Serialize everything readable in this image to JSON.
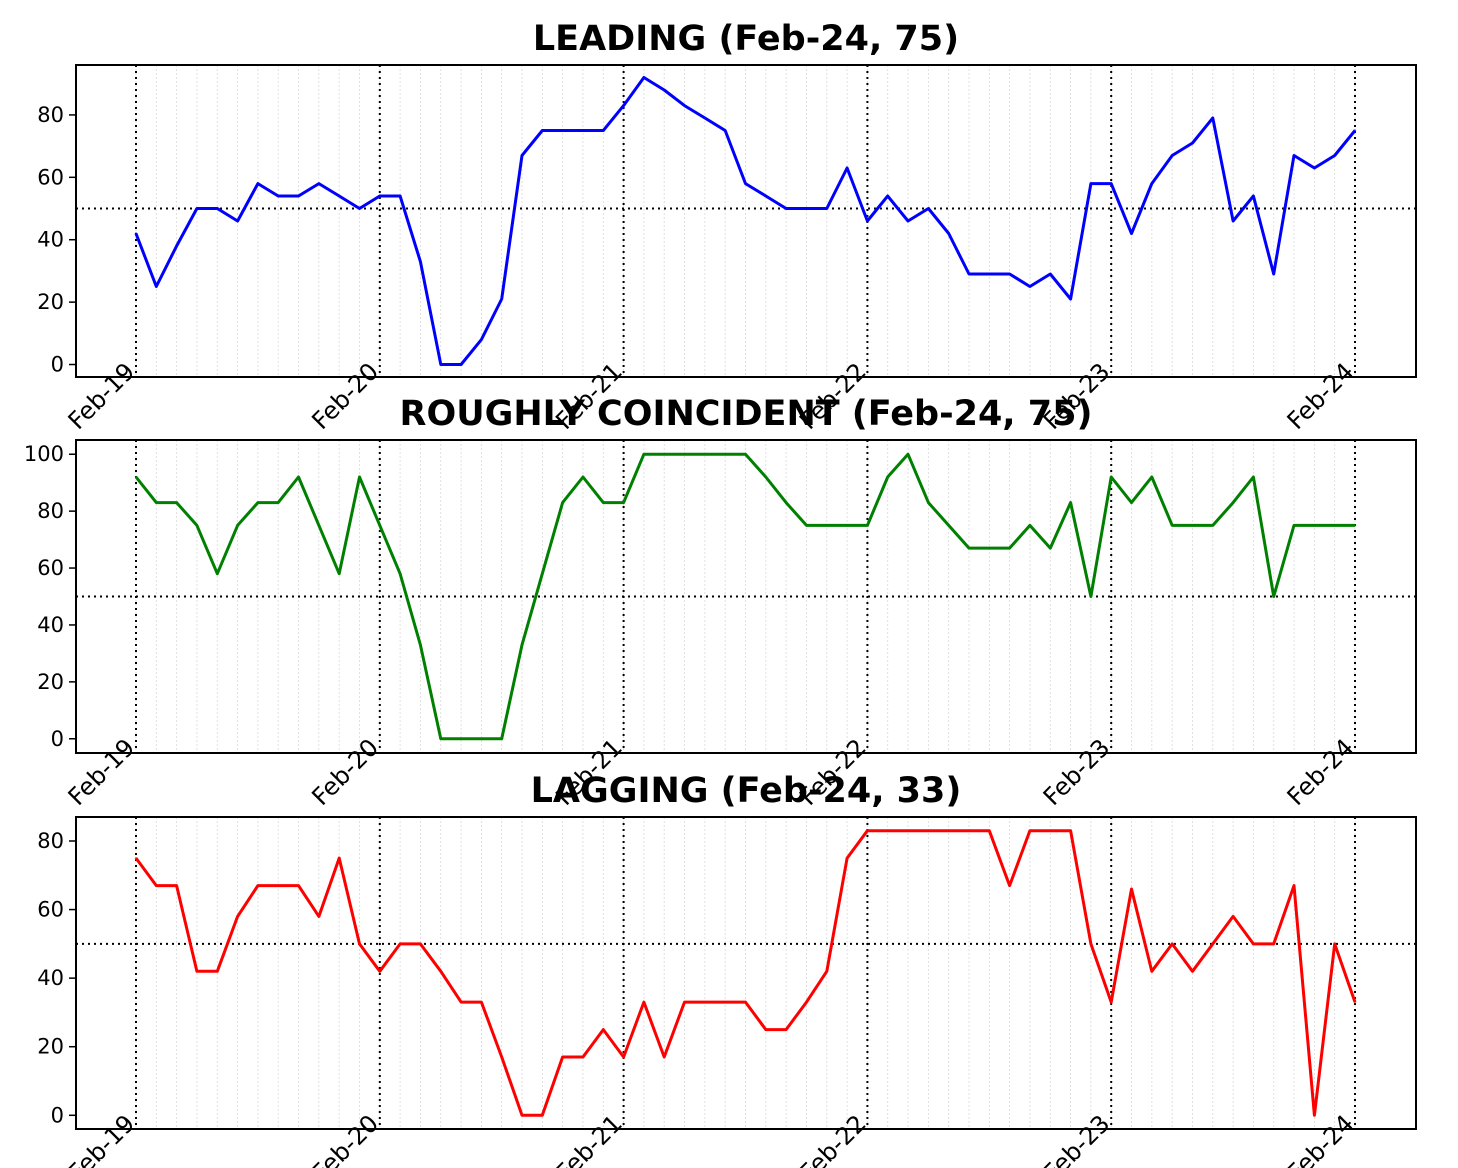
{
  "x_tick_labels": [
    "Feb-19",
    "Feb-20",
    "Feb-21",
    "Feb-22",
    "Feb-23",
    "Feb-24"
  ],
  "chart_data": [
    {
      "type": "line",
      "title": "LEADING (Feb-24, 75)",
      "color": "#0000ff",
      "threshold": 50,
      "ylim": [
        -4,
        96
      ],
      "yticks": [
        0,
        20,
        40,
        60,
        80
      ],
      "x_start": "Feb-19",
      "x_end": "Feb-24",
      "values": [
        42,
        25,
        38,
        50,
        50,
        46,
        58,
        54,
        54,
        58,
        54,
        50,
        54,
        54,
        33,
        0,
        0,
        8,
        21,
        67,
        75,
        75,
        75,
        75,
        83,
        92,
        88,
        83,
        79,
        75,
        58,
        54,
        50,
        50,
        50,
        63,
        46,
        54,
        46,
        50,
        42,
        29,
        29,
        29,
        25,
        29,
        21,
        58,
        58,
        42,
        58,
        67,
        71,
        79,
        46,
        54,
        29,
        67,
        63,
        67,
        75
      ]
    },
    {
      "type": "line",
      "title": "ROUGHLY COINCIDENT (Feb-24, 75)",
      "color": "#008000",
      "threshold": 50,
      "ylim": [
        -5,
        105
      ],
      "yticks": [
        0,
        20,
        40,
        60,
        80,
        100
      ],
      "x_start": "Feb-19",
      "x_end": "Feb-24",
      "values": [
        92,
        83,
        83,
        75,
        58,
        75,
        83,
        83,
        92,
        75,
        58,
        92,
        75,
        58,
        33,
        0,
        0,
        0,
        0,
        33,
        58,
        83,
        92,
        83,
        83,
        100,
        100,
        100,
        100,
        100,
        100,
        92,
        83,
        75,
        75,
        75,
        75,
        92,
        100,
        83,
        75,
        67,
        67,
        67,
        75,
        67,
        83,
        50,
        92,
        83,
        92,
        75,
        75,
        75,
        83,
        92,
        50,
        75,
        75,
        75,
        75
      ]
    },
    {
      "type": "line",
      "title": "LAGGING (Feb-24, 33)",
      "color": "#ff0000",
      "threshold": 50,
      "ylim": [
        -4,
        87
      ],
      "yticks": [
        0,
        20,
        40,
        60,
        80
      ],
      "x_start": "Feb-19",
      "x_end": "Feb-24",
      "values": [
        75,
        67,
        67,
        42,
        42,
        58,
        67,
        67,
        67,
        58,
        75,
        50,
        42,
        50,
        50,
        42,
        33,
        33,
        17,
        0,
        0,
        17,
        17,
        25,
        17,
        33,
        17,
        33,
        33,
        33,
        33,
        25,
        25,
        33,
        42,
        75,
        83,
        83,
        83,
        83,
        83,
        83,
        83,
        67,
        83,
        83,
        83,
        50,
        33,
        66,
        42,
        50,
        42,
        50,
        58,
        50,
        50,
        67,
        0,
        50,
        33
      ]
    }
  ]
}
